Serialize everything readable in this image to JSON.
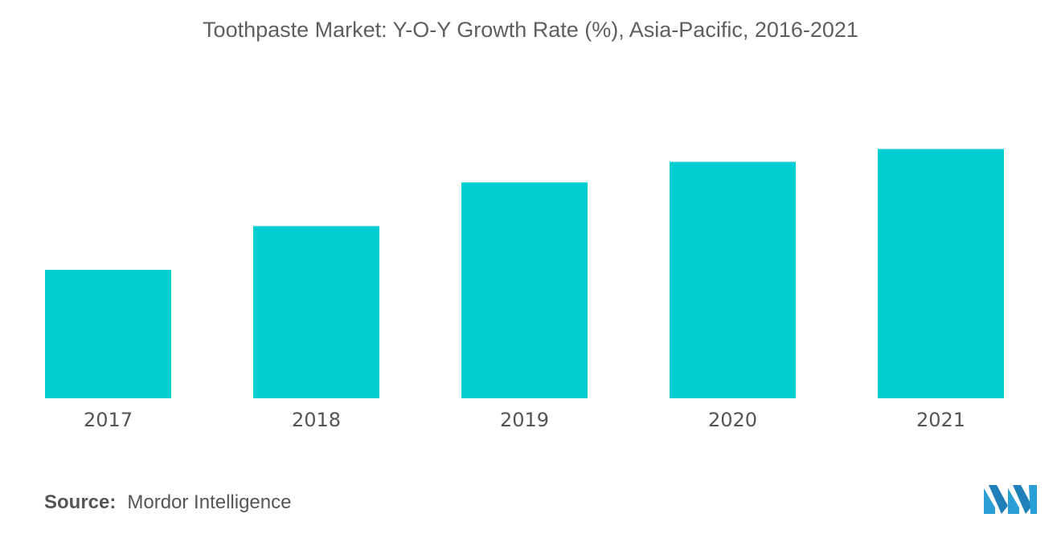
{
  "title": "Toothpaste Market: Y-O-Y Growth Rate (%), Asia-Pacific, 2016-2021",
  "source": {
    "label": "Source:",
    "value": "Mordor Intelligence"
  },
  "colors": {
    "bar": "#00ced1",
    "logo_light": "#2a9fd6",
    "logo_dark": "#1f7fb8"
  },
  "logo": {
    "icon": "mordor-intelligence-logo-icon"
  },
  "chart_data": {
    "type": "bar",
    "title": "Toothpaste Market: Y-O-Y Growth Rate (%), Asia-Pacific, 2016-2021",
    "categories": [
      "2017",
      "2018",
      "2019",
      "2020",
      "2021"
    ],
    "values": [
      50,
      67,
      84,
      92,
      97
    ],
    "xlabel": "",
    "ylabel": "",
    "ylim": [
      0,
      100
    ],
    "grid": false,
    "legend": "none"
  }
}
